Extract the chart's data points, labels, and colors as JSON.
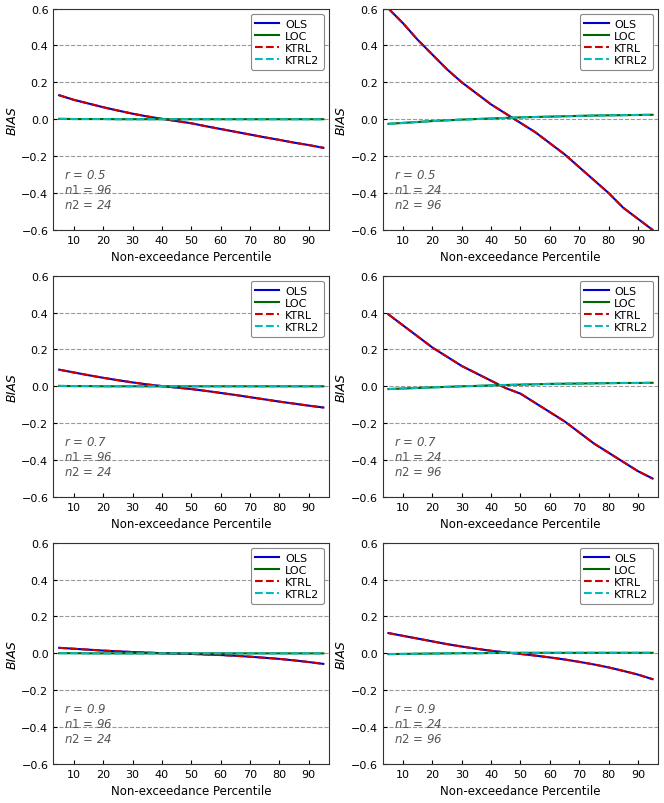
{
  "percentiles": [
    5,
    10,
    15,
    20,
    25,
    30,
    35,
    40,
    45,
    50,
    55,
    60,
    65,
    70,
    75,
    80,
    85,
    90,
    95
  ],
  "subplots": [
    {
      "r": "0.5",
      "n1": "96",
      "n2": "24",
      "OLS": [
        0.13,
        0.105,
        0.085,
        0.065,
        0.047,
        0.03,
        0.015,
        0.002,
        -0.01,
        -0.022,
        -0.038,
        -0.053,
        -0.068,
        -0.083,
        -0.098,
        -0.112,
        -0.127,
        -0.14,
        -0.155
      ],
      "LOC": [
        0.002,
        0.001,
        0.001,
        0.001,
        0.0,
        0.0,
        0.0,
        0.0,
        0.0,
        0.0,
        0.0,
        0.0,
        0.0,
        0.0,
        0.0,
        0.0,
        0.0,
        0.0,
        0.0
      ],
      "KTRL": [
        0.13,
        0.105,
        0.085,
        0.065,
        0.047,
        0.03,
        0.015,
        0.002,
        -0.01,
        -0.022,
        -0.038,
        -0.053,
        -0.068,
        -0.083,
        -0.098,
        -0.112,
        -0.127,
        -0.14,
        -0.155
      ],
      "KTRL2": [
        0.002,
        0.001,
        0.001,
        0.001,
        0.0,
        0.0,
        0.0,
        0.0,
        0.0,
        0.0,
        0.0,
        0.0,
        0.0,
        0.0,
        0.0,
        0.0,
        0.0,
        0.0,
        0.0
      ]
    },
    {
      "r": "0.5",
      "n1": "24",
      "n2": "96",
      "OLS": [
        0.6,
        0.52,
        0.43,
        0.35,
        0.27,
        0.2,
        0.14,
        0.08,
        0.03,
        -0.02,
        -0.07,
        -0.13,
        -0.19,
        -0.26,
        -0.33,
        -0.4,
        -0.48,
        -0.54,
        -0.6
      ],
      "LOC": [
        -0.025,
        -0.02,
        -0.015,
        -0.01,
        -0.006,
        -0.002,
        0.001,
        0.004,
        0.007,
        0.01,
        0.012,
        0.014,
        0.016,
        0.018,
        0.02,
        0.021,
        0.022,
        0.023,
        0.024
      ],
      "KTRL": [
        0.6,
        0.52,
        0.43,
        0.35,
        0.27,
        0.2,
        0.14,
        0.08,
        0.03,
        -0.02,
        -0.07,
        -0.13,
        -0.19,
        -0.26,
        -0.33,
        -0.4,
        -0.48,
        -0.54,
        -0.6
      ],
      "KTRL2": [
        -0.025,
        -0.02,
        -0.015,
        -0.01,
        -0.006,
        -0.002,
        0.001,
        0.004,
        0.007,
        0.01,
        0.012,
        0.014,
        0.016,
        0.018,
        0.02,
        0.021,
        0.022,
        0.023,
        0.024
      ]
    },
    {
      "r": "0.7",
      "n1": "96",
      "n2": "24",
      "OLS": [
        0.09,
        0.075,
        0.06,
        0.046,
        0.033,
        0.021,
        0.01,
        0.001,
        -0.007,
        -0.015,
        -0.025,
        -0.036,
        -0.047,
        -0.059,
        -0.071,
        -0.083,
        -0.094,
        -0.105,
        -0.115
      ],
      "LOC": [
        0.002,
        0.001,
        0.001,
        0.0,
        0.0,
        0.0,
        0.0,
        0.0,
        0.0,
        0.0,
        0.0,
        0.0,
        0.0,
        0.0,
        0.0,
        0.0,
        0.0,
        0.0,
        0.0
      ],
      "KTRL": [
        0.09,
        0.075,
        0.06,
        0.046,
        0.033,
        0.021,
        0.01,
        0.001,
        -0.007,
        -0.015,
        -0.025,
        -0.036,
        -0.047,
        -0.059,
        -0.071,
        -0.083,
        -0.094,
        -0.105,
        -0.115
      ],
      "KTRL2": [
        0.002,
        0.001,
        0.001,
        0.0,
        0.0,
        0.0,
        0.0,
        0.0,
        0.0,
        0.0,
        0.0,
        0.0,
        0.0,
        0.0,
        0.0,
        0.0,
        0.0,
        0.0,
        0.0
      ]
    },
    {
      "r": "0.7",
      "n1": "24",
      "n2": "96",
      "OLS": [
        0.39,
        0.33,
        0.27,
        0.21,
        0.16,
        0.11,
        0.07,
        0.03,
        -0.01,
        -0.04,
        -0.09,
        -0.14,
        -0.19,
        -0.25,
        -0.31,
        -0.36,
        -0.41,
        -0.46,
        -0.5
      ],
      "LOC": [
        -0.015,
        -0.012,
        -0.009,
        -0.006,
        -0.003,
        0.0,
        0.002,
        0.005,
        0.007,
        0.009,
        0.011,
        0.013,
        0.014,
        0.015,
        0.016,
        0.017,
        0.018,
        0.018,
        0.019
      ],
      "KTRL": [
        0.39,
        0.33,
        0.27,
        0.21,
        0.16,
        0.11,
        0.07,
        0.03,
        -0.01,
        -0.04,
        -0.09,
        -0.14,
        -0.19,
        -0.25,
        -0.31,
        -0.36,
        -0.41,
        -0.46,
        -0.5
      ],
      "KTRL2": [
        -0.015,
        -0.012,
        -0.009,
        -0.006,
        -0.003,
        0.0,
        0.002,
        0.005,
        0.007,
        0.009,
        0.011,
        0.013,
        0.014,
        0.015,
        0.016,
        0.017,
        0.018,
        0.018,
        0.019
      ]
    },
    {
      "r": "0.9",
      "n1": "96",
      "n2": "24",
      "OLS": [
        0.03,
        0.025,
        0.02,
        0.015,
        0.011,
        0.007,
        0.004,
        0.001,
        -0.001,
        -0.003,
        -0.006,
        -0.009,
        -0.013,
        -0.018,
        -0.024,
        -0.03,
        -0.038,
        -0.047,
        -0.057
      ],
      "LOC": [
        0.001,
        0.001,
        0.0,
        0.0,
        0.0,
        0.0,
        0.0,
        0.0,
        0.0,
        0.0,
        0.0,
        0.0,
        0.0,
        0.0,
        0.0,
        0.0,
        0.0,
        0.0,
        0.0
      ],
      "KTRL": [
        0.03,
        0.025,
        0.02,
        0.015,
        0.011,
        0.007,
        0.004,
        0.001,
        -0.001,
        -0.003,
        -0.006,
        -0.009,
        -0.013,
        -0.018,
        -0.024,
        -0.03,
        -0.038,
        -0.047,
        -0.057
      ],
      "KTRL2": [
        0.001,
        0.001,
        0.0,
        0.0,
        0.0,
        0.0,
        0.0,
        0.0,
        0.0,
        0.0,
        0.0,
        0.0,
        0.0,
        0.0,
        0.0,
        0.0,
        0.0,
        0.0,
        0.0
      ]
    },
    {
      "r": "0.9",
      "n1": "24",
      "n2": "96",
      "OLS": [
        0.11,
        0.095,
        0.08,
        0.065,
        0.05,
        0.037,
        0.025,
        0.014,
        0.005,
        -0.003,
        -0.012,
        -0.022,
        -0.033,
        -0.046,
        -0.06,
        -0.076,
        -0.095,
        -0.115,
        -0.14
      ],
      "LOC": [
        -0.004,
        -0.003,
        -0.002,
        -0.001,
        0.0,
        0.001,
        0.001,
        0.002,
        0.002,
        0.003,
        0.003,
        0.003,
        0.003,
        0.003,
        0.003,
        0.003,
        0.003,
        0.003,
        0.003
      ],
      "KTRL": [
        0.11,
        0.095,
        0.08,
        0.065,
        0.05,
        0.037,
        0.025,
        0.014,
        0.005,
        -0.003,
        -0.012,
        -0.022,
        -0.033,
        -0.046,
        -0.06,
        -0.076,
        -0.095,
        -0.115,
        -0.14
      ],
      "KTRL2": [
        -0.004,
        -0.003,
        -0.002,
        -0.001,
        0.0,
        0.001,
        0.001,
        0.002,
        0.002,
        0.003,
        0.003,
        0.003,
        0.003,
        0.003,
        0.003,
        0.003,
        0.003,
        0.003,
        0.003
      ]
    }
  ],
  "line_styles": {
    "OLS": {
      "color": "#0000cc",
      "linestyle": "-",
      "linewidth": 1.5
    },
    "LOC": {
      "color": "#006600",
      "linestyle": "-",
      "linewidth": 1.5
    },
    "KTRL": {
      "color": "#cc0000",
      "linestyle": "--",
      "linewidth": 1.5
    },
    "KTRL2": {
      "color": "#00bbbb",
      "linestyle": "--",
      "linewidth": 1.5
    }
  },
  "xlim": [
    3,
    97
  ],
  "ylim": [
    -0.6,
    0.6
  ],
  "yticks": [
    -0.6,
    -0.4,
    -0.2,
    0.0,
    0.2,
    0.4,
    0.6
  ],
  "xticks": [
    10,
    20,
    30,
    40,
    50,
    60,
    70,
    80,
    90
  ],
  "xlabel": "Non-exceedance Percentile",
  "ylabel": "BIAS",
  "grid_color": "#999999",
  "grid_style": "--",
  "background_color": "#ffffff"
}
